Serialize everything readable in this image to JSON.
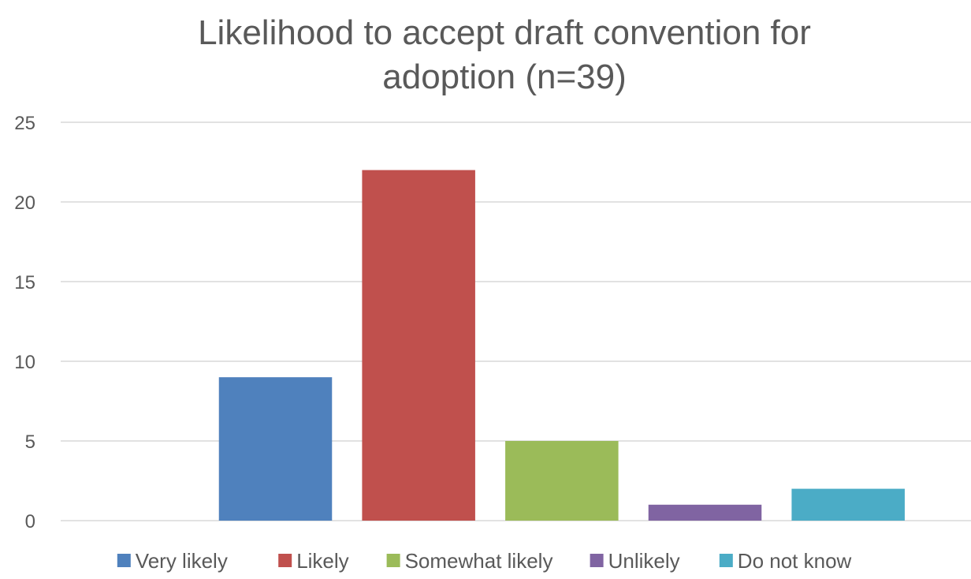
{
  "chart_data": {
    "type": "bar",
    "title": "Likelihood to accept draft convention for adoption (n=39)",
    "categories": [
      "Very likely",
      "Likely",
      "Somewhat likely",
      "Unlikely",
      "Do not know"
    ],
    "values": [
      9,
      22,
      5,
      1,
      2
    ],
    "colors": [
      "#4F81BD",
      "#C0504D",
      "#9BBB59",
      "#8064A2",
      "#4BACC6"
    ],
    "ylim": [
      0,
      25
    ],
    "yticks": [
      0,
      5,
      10,
      15,
      20,
      25
    ],
    "grid": true,
    "legend_position": "bottom"
  }
}
